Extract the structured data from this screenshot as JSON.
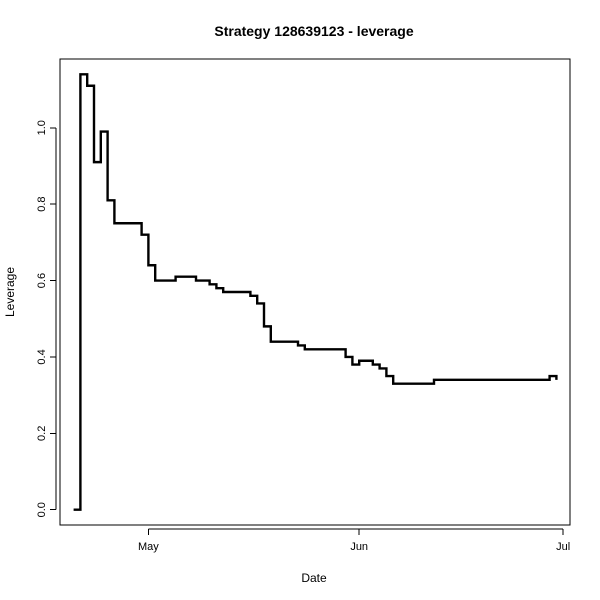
{
  "chart_data": {
    "type": "line",
    "title": "Strategy 128639123 - leverage",
    "xlabel": "Date",
    "ylabel": "Leverage",
    "x_ticks": [
      {
        "date": "2021-05-01",
        "label": "May"
      },
      {
        "date": "2021-06-01",
        "label": "Jun"
      },
      {
        "date": "2021-07-01",
        "label": "Jul"
      }
    ],
    "y_ticks": [
      0.0,
      0.2,
      0.4,
      0.6,
      0.8,
      1.0
    ],
    "y_tick_labels": [
      "0.0",
      "0.2",
      "0.4",
      "0.6",
      "0.8",
      "1.0"
    ],
    "xlim": [
      "2021-04-18",
      "2021-07-02"
    ],
    "ylim": [
      -0.04,
      1.18
    ],
    "grid": false,
    "legend": "none",
    "series": [
      {
        "line_color": "#000000",
        "x": [
          "2021-04-20",
          "2021-04-21",
          "2021-04-22",
          "2021-04-23",
          "2021-04-24",
          "2021-04-25",
          "2021-04-26",
          "2021-04-27",
          "2021-04-28",
          "2021-04-30",
          "2021-05-01",
          "2021-05-02",
          "2021-05-05",
          "2021-05-06",
          "2021-05-08",
          "2021-05-10",
          "2021-05-11",
          "2021-05-12",
          "2021-05-13",
          "2021-05-14",
          "2021-05-15",
          "2021-05-16",
          "2021-05-17",
          "2021-05-18",
          "2021-05-19",
          "2021-05-20",
          "2021-05-23",
          "2021-05-24",
          "2021-05-25",
          "2021-05-26",
          "2021-05-27",
          "2021-05-28",
          "2021-05-29",
          "2021-05-30",
          "2021-05-31",
          "2021-06-01",
          "2021-06-03",
          "2021-06-04",
          "2021-06-05",
          "2021-06-06",
          "2021-06-07",
          "2021-06-08",
          "2021-06-09",
          "2021-06-10",
          "2021-06-11",
          "2021-06-12",
          "2021-06-13",
          "2021-06-14",
          "2021-06-15",
          "2021-06-16",
          "2021-06-17",
          "2021-06-18",
          "2021-06-19",
          "2021-06-20",
          "2021-06-21",
          "2021-06-22",
          "2021-06-23",
          "2021-06-24",
          "2021-06-25",
          "2021-06-26",
          "2021-06-27",
          "2021-06-28",
          "2021-06-29",
          "2021-06-30"
        ],
        "y": [
          0.0,
          1.14,
          1.11,
          0.91,
          0.99,
          0.81,
          0.75,
          0.75,
          0.75,
          0.72,
          0.64,
          0.6,
          0.61,
          0.61,
          0.6,
          0.59,
          0.58,
          0.57,
          0.57,
          0.57,
          0.57,
          0.56,
          0.54,
          0.48,
          0.44,
          0.44,
          0.43,
          0.42,
          0.42,
          0.42,
          0.42,
          0.42,
          0.42,
          0.4,
          0.38,
          0.39,
          0.38,
          0.37,
          0.35,
          0.33,
          0.33,
          0.33,
          0.33,
          0.33,
          0.33,
          0.34,
          0.34,
          0.34,
          0.34,
          0.34,
          0.34,
          0.34,
          0.34,
          0.34,
          0.34,
          0.34,
          0.34,
          0.34,
          0.34,
          0.34,
          0.34,
          0.34,
          0.35,
          0.34
        ]
      }
    ]
  }
}
